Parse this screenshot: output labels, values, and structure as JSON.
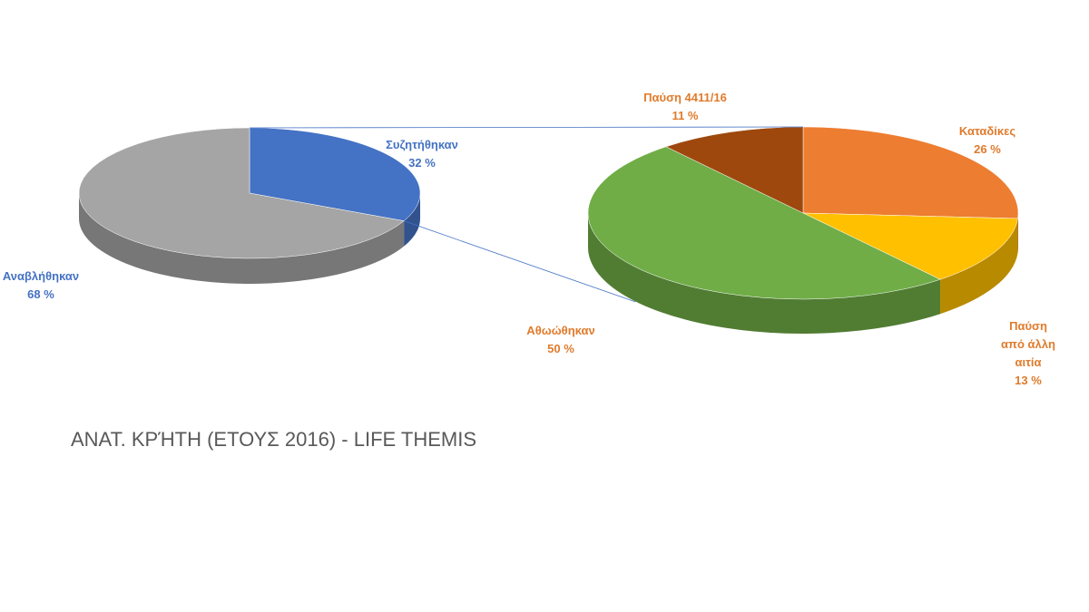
{
  "chart_data": [
    {
      "type": "pie",
      "title": "ΑΝΑΤ. ΚΡΉΤΗ (ΕΤΟΥΣ 2016) - LIFE THEMIS",
      "categories": [
        "Συζητήθηκαν",
        "Αναβλήθηκαν"
      ],
      "values": [
        32,
        68
      ],
      "value_labels": [
        "32 %",
        "68 %"
      ],
      "colors": [
        "#4472c4",
        "#a5a5a5"
      ],
      "label_color": "#4472c4"
    },
    {
      "type": "pie",
      "categories": [
        "Καταδίκες",
        "Παύση από άλλη αιτία",
        "Αθωώθηκαν",
        "Παύση 4411/16"
      ],
      "values": [
        26,
        13,
        50,
        11
      ],
      "value_labels": [
        "26 %",
        "13 %",
        "50 %",
        "11 %"
      ],
      "colors": [
        "#ed7d31",
        "#ffc000",
        "#70ad47",
        "#9e480e"
      ],
      "label_color": "#e07b2c"
    }
  ]
}
